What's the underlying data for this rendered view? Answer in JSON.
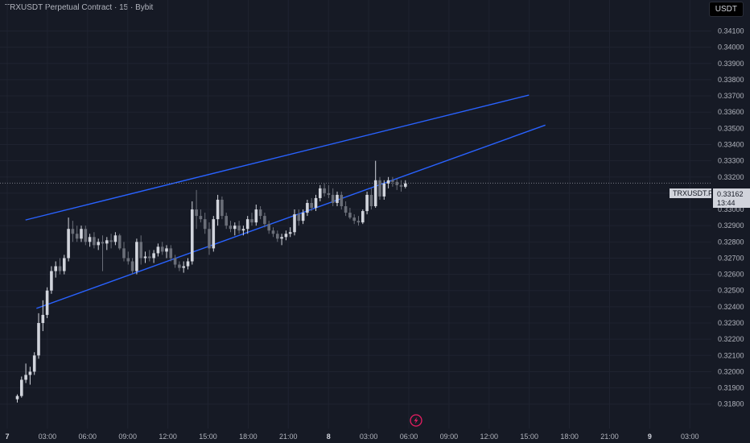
{
  "header": {
    "title": "TRXUSDT Perpetual Contract · 15 · Bybit",
    "currency": "USDT"
  },
  "price_tag": {
    "symbol": "TRXUSDT.P",
    "price": "0.33162",
    "countdown": "13:44"
  },
  "colors": {
    "background": "#161a25",
    "grid": "#1f2330",
    "candle_up": "#d1d4dc",
    "candle_down": "#6a6e78",
    "trendline": "#2962ff",
    "axis_text": "#b2b5be",
    "price_line": "#787b86",
    "flash_icon": "#e91e63"
  },
  "icons": {
    "bottom": "flash-icon"
  },
  "chart_data": {
    "type": "candlestick",
    "title": "TRXUSDT Perpetual Contract · 15 · Bybit",
    "y_axis_ticks": [
      0.318,
      0.319,
      0.32,
      0.321,
      0.322,
      0.323,
      0.324,
      0.325,
      0.326,
      0.327,
      0.328,
      0.329,
      0.33,
      0.331,
      0.332,
      0.333,
      0.334,
      0.335,
      0.336,
      0.337,
      0.338,
      0.339,
      0.34,
      0.341
    ],
    "x_axis_ticks": [
      "7",
      "03:00",
      "06:00",
      "09:00",
      "12:00",
      "15:00",
      "18:00",
      "21:00",
      "8",
      "03:00",
      "06:00",
      "09:00",
      "12:00",
      "15:00",
      "18:00",
      "21:00",
      "9",
      "03:00"
    ],
    "bold_ticks": [
      "7",
      "8",
      "9"
    ],
    "ylim": [
      0.318,
      0.3415
    ],
    "grid": true,
    "last_price": 0.33162,
    "candles": [
      [
        0.3183,
        0.3186,
        0.3181,
        0.3185
      ],
      [
        0.3185,
        0.3197,
        0.3184,
        0.3195
      ],
      [
        0.3195,
        0.3205,
        0.3193,
        0.3198
      ],
      [
        0.3198,
        0.3203,
        0.3192,
        0.32
      ],
      [
        0.32,
        0.3212,
        0.3198,
        0.321
      ],
      [
        0.321,
        0.3236,
        0.3208,
        0.323
      ],
      [
        0.323,
        0.3244,
        0.3225,
        0.3235
      ],
      [
        0.3235,
        0.3252,
        0.3233,
        0.325
      ],
      [
        0.325,
        0.3265,
        0.3248,
        0.3262
      ],
      [
        0.3262,
        0.3268,
        0.3258,
        0.3265
      ],
      [
        0.3265,
        0.327,
        0.326,
        0.3262
      ],
      [
        0.3262,
        0.3272,
        0.326,
        0.327
      ],
      [
        0.327,
        0.3295,
        0.3268,
        0.3288
      ],
      [
        0.3288,
        0.3293,
        0.328,
        0.3285
      ],
      [
        0.3285,
        0.329,
        0.328,
        0.3282
      ],
      [
        0.3282,
        0.329,
        0.328,
        0.3288
      ],
      [
        0.3288,
        0.329,
        0.3278,
        0.328
      ],
      [
        0.328,
        0.3285,
        0.3277,
        0.3283
      ],
      [
        0.3283,
        0.3286,
        0.3276,
        0.3278
      ],
      [
        0.3278,
        0.3282,
        0.3275,
        0.328
      ],
      [
        0.328,
        0.3284,
        0.3262,
        0.3279
      ],
      [
        0.3279,
        0.3283,
        0.3275,
        0.3281
      ],
      [
        0.3281,
        0.3285,
        0.3276,
        0.328
      ],
      [
        0.328,
        0.3286,
        0.3278,
        0.3284
      ],
      [
        0.3284,
        0.3285,
        0.3275,
        0.3276
      ],
      [
        0.3276,
        0.328,
        0.3268,
        0.327
      ],
      [
        0.327,
        0.3274,
        0.3266,
        0.3268
      ],
      [
        0.3268,
        0.327,
        0.326,
        0.3262
      ],
      [
        0.3262,
        0.3282,
        0.326,
        0.328
      ],
      [
        0.328,
        0.3284,
        0.3266,
        0.327
      ],
      [
        0.327,
        0.3274,
        0.3267,
        0.3271
      ],
      [
        0.3271,
        0.3275,
        0.3268,
        0.327
      ],
      [
        0.327,
        0.3275,
        0.3267,
        0.3273
      ],
      [
        0.3273,
        0.3279,
        0.3271,
        0.3277
      ],
      [
        0.3277,
        0.328,
        0.3272,
        0.3274
      ],
      [
        0.3274,
        0.3278,
        0.327,
        0.3276
      ],
      [
        0.3276,
        0.3278,
        0.3268,
        0.327
      ],
      [
        0.327,
        0.3272,
        0.3264,
        0.3266
      ],
      [
        0.3266,
        0.3268,
        0.3262,
        0.3264
      ],
      [
        0.3264,
        0.3268,
        0.3261,
        0.3265
      ],
      [
        0.3265,
        0.327,
        0.3263,
        0.3268
      ],
      [
        0.3268,
        0.3305,
        0.3266,
        0.33
      ],
      [
        0.33,
        0.3312,
        0.3288,
        0.3296
      ],
      [
        0.3296,
        0.33,
        0.3292,
        0.3294
      ],
      [
        0.3294,
        0.3298,
        0.3285,
        0.3288
      ],
      [
        0.3288,
        0.3292,
        0.3272,
        0.3276
      ],
      [
        0.3276,
        0.3296,
        0.3274,
        0.3294
      ],
      [
        0.3294,
        0.3309,
        0.329,
        0.3306
      ],
      [
        0.3306,
        0.3308,
        0.3294,
        0.3296
      ],
      [
        0.3296,
        0.3298,
        0.3288,
        0.329
      ],
      [
        0.329,
        0.3293,
        0.3286,
        0.3288
      ],
      [
        0.3288,
        0.3292,
        0.3284,
        0.329
      ],
      [
        0.329,
        0.3293,
        0.3285,
        0.3287
      ],
      [
        0.3287,
        0.329,
        0.3284,
        0.3288
      ],
      [
        0.3288,
        0.3296,
        0.3285,
        0.3294
      ],
      [
        0.3294,
        0.3298,
        0.329,
        0.3292
      ],
      [
        0.3292,
        0.3303,
        0.329,
        0.33
      ],
      [
        0.33,
        0.3302,
        0.3294,
        0.3296
      ],
      [
        0.3296,
        0.3298,
        0.3289,
        0.3291
      ],
      [
        0.3291,
        0.3293,
        0.3285,
        0.3287
      ],
      [
        0.3287,
        0.3289,
        0.3283,
        0.3285
      ],
      [
        0.3285,
        0.3287,
        0.328,
        0.3282
      ],
      [
        0.3282,
        0.3285,
        0.3278,
        0.3283
      ],
      [
        0.3283,
        0.3287,
        0.3281,
        0.3285
      ],
      [
        0.3285,
        0.3289,
        0.3283,
        0.3286
      ],
      [
        0.3286,
        0.33,
        0.3284,
        0.3297
      ],
      [
        0.3297,
        0.33,
        0.329,
        0.3293
      ],
      [
        0.3293,
        0.33,
        0.3291,
        0.3298
      ],
      [
        0.3298,
        0.3306,
        0.3296,
        0.3304
      ],
      [
        0.3304,
        0.3307,
        0.3299,
        0.3301
      ],
      [
        0.3301,
        0.3309,
        0.3299,
        0.3307
      ],
      [
        0.3307,
        0.3315,
        0.3305,
        0.3313
      ],
      [
        0.3313,
        0.3316,
        0.3308,
        0.331
      ],
      [
        0.331,
        0.3315,
        0.3307,
        0.3309
      ],
      [
        0.3309,
        0.3313,
        0.3302,
        0.3304
      ],
      [
        0.3304,
        0.3311,
        0.3302,
        0.3309
      ],
      [
        0.3309,
        0.3311,
        0.33,
        0.3302
      ],
      [
        0.3302,
        0.3305,
        0.3296,
        0.3298
      ],
      [
        0.3298,
        0.3301,
        0.3294,
        0.3295
      ],
      [
        0.3295,
        0.3297,
        0.3291,
        0.3293
      ],
      [
        0.3293,
        0.3296,
        0.329,
        0.3292
      ],
      [
        0.3292,
        0.33,
        0.3291,
        0.3299
      ],
      [
        0.3299,
        0.3311,
        0.3297,
        0.3309
      ],
      [
        0.3309,
        0.3313,
        0.33,
        0.3302
      ],
      [
        0.3302,
        0.333,
        0.3301,
        0.3318
      ],
      [
        0.3318,
        0.332,
        0.3306,
        0.3308
      ],
      [
        0.3308,
        0.3318,
        0.3306,
        0.3316
      ],
      [
        0.3316,
        0.332,
        0.3313,
        0.3318
      ],
      [
        0.3318,
        0.332,
        0.3314,
        0.3317
      ],
      [
        0.3317,
        0.3319,
        0.3312,
        0.3315
      ],
      [
        0.3315,
        0.3318,
        0.3311,
        0.3314
      ],
      [
        0.3314,
        0.3318,
        0.3313,
        0.3316
      ]
    ],
    "trendlines": [
      {
        "from": {
          "bar": 3,
          "price": 0.32935
        },
        "to": {
          "bar": 187,
          "price": 0.33705
        }
      },
      {
        "from": {
          "bar": 7,
          "price": 0.3239
        },
        "to": {
          "bar": 193,
          "price": 0.3352
        }
      }
    ]
  }
}
